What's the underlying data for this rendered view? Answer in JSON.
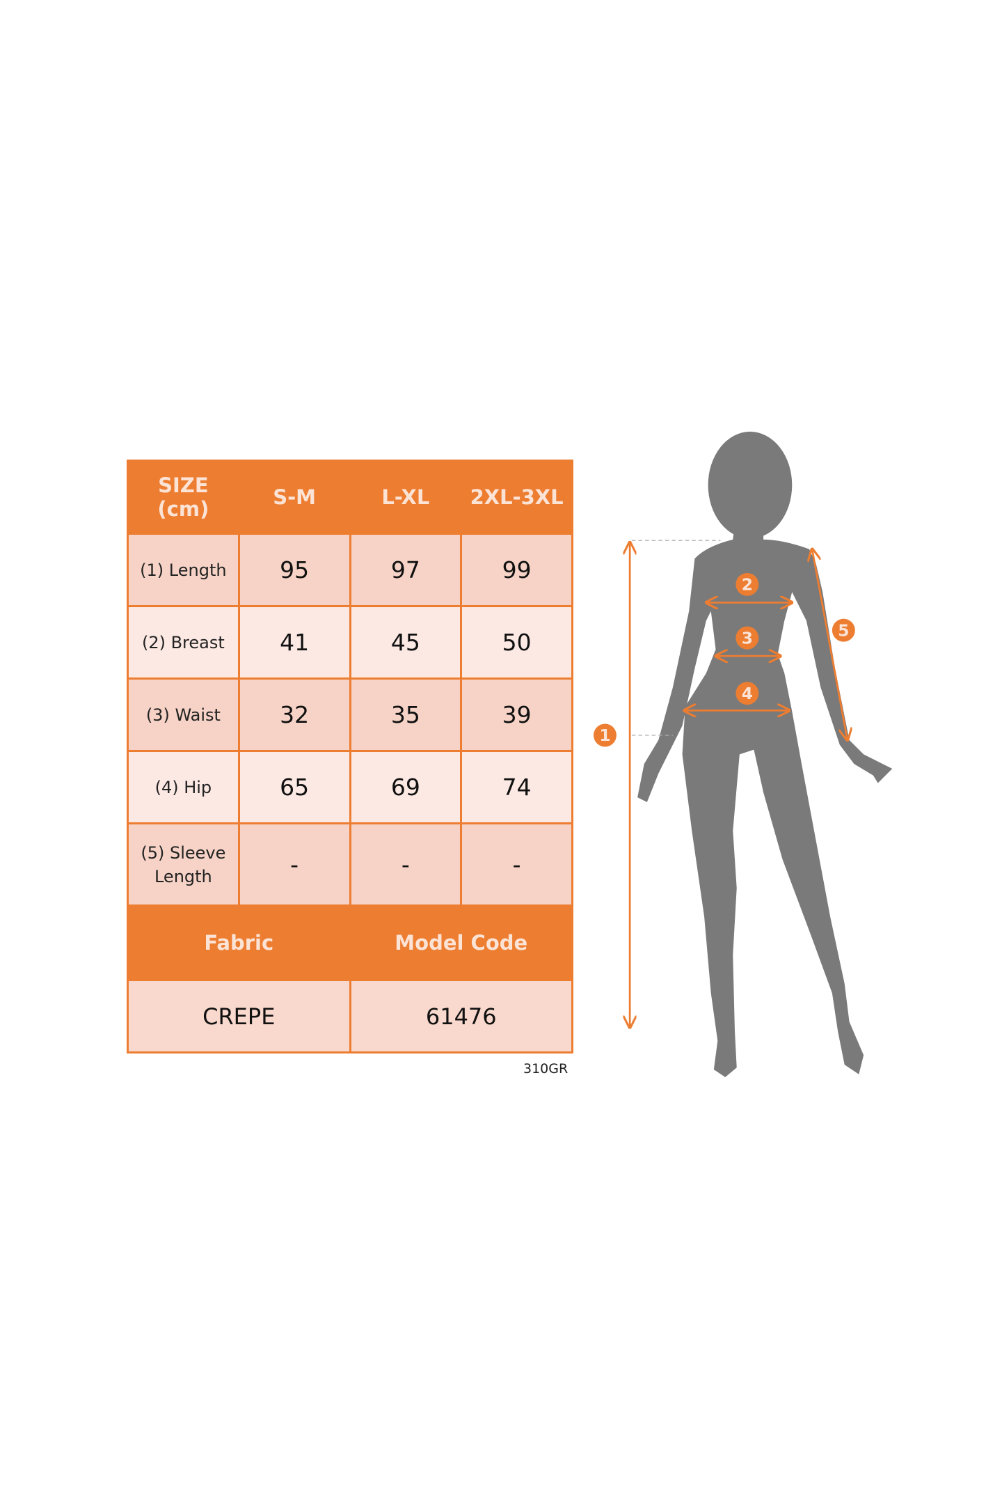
{
  "table": {
    "header": [
      "SIZE\n(cm)",
      "S-M",
      "L-XL",
      "2XL-3XL"
    ],
    "header_size_line1": "SIZE",
    "header_size_line2": "(cm)",
    "rows": [
      {
        "label": "(1) Length",
        "values": [
          "95",
          "97",
          "99"
        ]
      },
      {
        "label": "(2) Breast",
        "values": [
          "41",
          "45",
          "50"
        ]
      },
      {
        "label": "(3) Waist",
        "values": [
          "32",
          "35",
          "39"
        ]
      },
      {
        "label": "(4) Hip",
        "values": [
          "65",
          "69",
          "74"
        ]
      },
      {
        "label_line1": "(5) Sleeve",
        "label_line2": "Length",
        "values": [
          "-",
          "-",
          "-"
        ]
      }
    ],
    "fabric_label": "Fabric",
    "model_code_label": "Model Code",
    "fabric_value": "CREPE",
    "model_code_value": "61476"
  },
  "code_note": "310GR",
  "figure": {
    "markers": [
      "1",
      "2",
      "3",
      "4",
      "5"
    ],
    "silhouette_color": "#7A7A7A",
    "accent_color": "#ED7D31"
  }
}
